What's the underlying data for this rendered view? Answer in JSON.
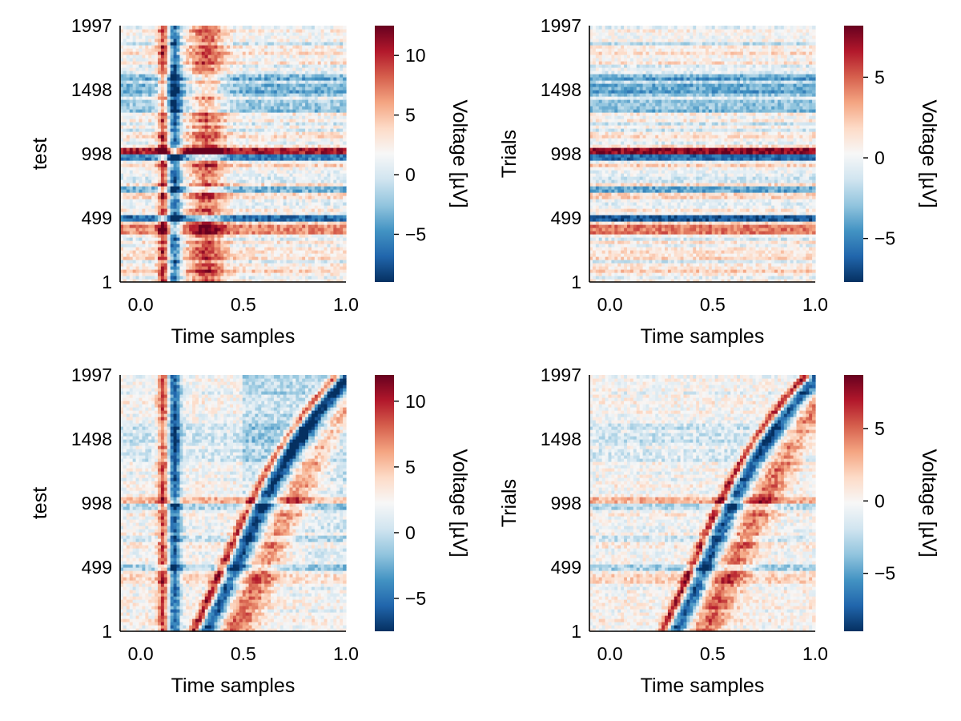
{
  "chart_data": [
    {
      "type": "heatmap",
      "pattern": "unsorted",
      "xlabel": "Time samples",
      "ylabel": "test",
      "xlim": [
        -0.1,
        1.0
      ],
      "ylim": [
        1,
        1997
      ],
      "x_ticks": [
        "0.0",
        "0.5",
        "1.0"
      ],
      "y_ticks": [
        "1",
        "499",
        "998",
        "1498",
        "1997"
      ],
      "colormap": "RdBu_r",
      "colorbar": {
        "label": "Voltage [µV]",
        "range": [
          -9,
          12.5
        ],
        "ticks": [
          "−5",
          "0",
          "5",
          "10"
        ],
        "tick_values": [
          -5,
          0,
          5,
          10
        ]
      }
    },
    {
      "type": "heatmap",
      "pattern": "unsorted-residual",
      "xlabel": "Time samples",
      "ylabel": "Trials",
      "xlim": [
        -0.1,
        1.0
      ],
      "ylim": [
        1,
        1997
      ],
      "x_ticks": [
        "0.0",
        "0.5",
        "1.0"
      ],
      "y_ticks": [
        "1",
        "499",
        "998",
        "1498",
        "1997"
      ],
      "colormap": "RdBu_r",
      "colorbar": {
        "label": "Voltage [µV]",
        "range": [
          -7.7,
          8.2
        ],
        "ticks": [
          "−5",
          "0",
          "5"
        ],
        "tick_values": [
          -5,
          0,
          5
        ]
      }
    },
    {
      "type": "heatmap",
      "pattern": "sorted",
      "xlabel": "Time samples",
      "ylabel": "test",
      "xlim": [
        -0.1,
        1.0
      ],
      "ylim": [
        1,
        1997
      ],
      "x_ticks": [
        "0.0",
        "0.5",
        "1.0"
      ],
      "y_ticks": [
        "1",
        "499",
        "998",
        "1498",
        "1997"
      ],
      "colormap": "RdBu_r",
      "colorbar": {
        "label": "Voltage [µV]",
        "range": [
          -7.5,
          12
        ],
        "ticks": [
          "−5",
          "0",
          "5",
          "10"
        ],
        "tick_values": [
          -5,
          0,
          5,
          10
        ]
      }
    },
    {
      "type": "heatmap",
      "pattern": "sorted-residual",
      "xlabel": "Time samples",
      "ylabel": "Trials",
      "xlim": [
        -0.1,
        1.0
      ],
      "ylim": [
        1,
        1997
      ],
      "x_ticks": [
        "0.0",
        "0.5",
        "1.0"
      ],
      "y_ticks": [
        "1",
        "499",
        "998",
        "1498",
        "1997"
      ],
      "colormap": "RdBu_r",
      "colorbar": {
        "label": "Voltage [µV]",
        "range": [
          -9,
          8.7
        ],
        "ticks": [
          "−5",
          "0",
          "5"
        ],
        "tick_values": [
          -5,
          0,
          5
        ]
      }
    }
  ]
}
